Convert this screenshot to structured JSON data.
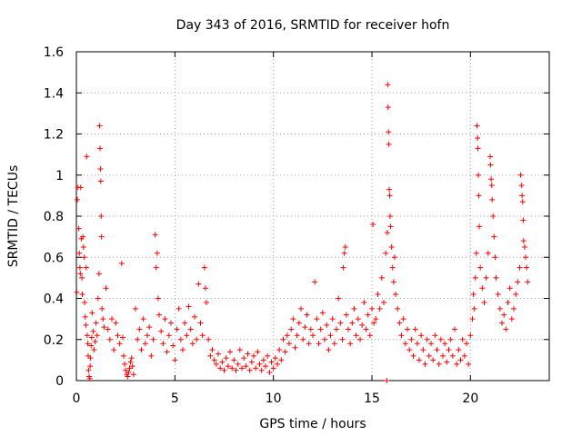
{
  "chart_data": {
    "type": "scatter",
    "title": "Day 343 of 2016, SRMTID for receiver hofn",
    "xlabel": "GPS time / hours",
    "ylabel": "SRMTID / TECUs",
    "xlim": [
      0,
      24
    ],
    "ylim": [
      0,
      1.6
    ],
    "xticks": [
      0,
      5,
      10,
      15,
      20
    ],
    "xtick_labels": [
      "0",
      "5",
      "10",
      "15",
      "20"
    ],
    "yticks": [
      0,
      0.2,
      0.4,
      0.6,
      0.8,
      1.0,
      1.2,
      1.4,
      1.6
    ],
    "ytick_labels": [
      "0",
      "0.2",
      "0.4",
      "0.6",
      "0.8",
      "1",
      "1.2",
      "1.4",
      "1.6"
    ],
    "grid": true,
    "marker": "+",
    "series_color": "#ff0000",
    "series": [
      {
        "name": "SRMTID",
        "points": [
          [
            0.02,
            0.43
          ],
          [
            0.05,
            0.88
          ],
          [
            0.08,
            0.94
          ],
          [
            0.12,
            0.74
          ],
          [
            0.15,
            0.62
          ],
          [
            0.18,
            0.55
          ],
          [
            0.2,
            0.52
          ],
          [
            0.22,
            0.94
          ],
          [
            0.25,
            0.69
          ],
          [
            0.28,
            0.5
          ],
          [
            0.3,
            0.42
          ],
          [
            0.33,
            0.7
          ],
          [
            0.36,
            0.65
          ],
          [
            0.4,
            0.6
          ],
          [
            0.42,
            0.38
          ],
          [
            0.45,
            0.31
          ],
          [
            0.48,
            0.27
          ],
          [
            0.5,
            0.55
          ],
          [
            0.52,
            1.09
          ],
          [
            0.55,
            0.22
          ],
          [
            0.58,
            0.18
          ],
          [
            0.6,
            0.12
          ],
          [
            0.62,
            0.05
          ],
          [
            0.65,
            0.02
          ],
          [
            0.68,
            0.01
          ],
          [
            0.7,
            0.07
          ],
          [
            0.72,
            0.11
          ],
          [
            0.75,
            0.17
          ],
          [
            0.78,
            0.21
          ],
          [
            0.8,
            0.33
          ],
          [
            0.85,
            0.24
          ],
          [
            0.9,
            0.15
          ],
          [
            0.95,
            0.19
          ],
          [
            1.0,
            0.28
          ],
          [
            1.05,
            0.22
          ],
          [
            1.1,
            0.4
          ],
          [
            1.15,
            0.52
          ],
          [
            1.18,
            1.24
          ],
          [
            1.2,
            1.13
          ],
          [
            1.22,
            1.03
          ],
          [
            1.24,
            0.97
          ],
          [
            1.26,
            0.8
          ],
          [
            1.28,
            0.7
          ],
          [
            1.3,
            0.35
          ],
          [
            1.35,
            0.3
          ],
          [
            1.4,
            0.26
          ],
          [
            1.5,
            0.45
          ],
          [
            1.6,
            0.25
          ],
          [
            1.7,
            0.2
          ],
          [
            1.8,
            0.3
          ],
          [
            1.9,
            0.15
          ],
          [
            2.0,
            0.28
          ],
          [
            2.1,
            0.22
          ],
          [
            2.2,
            0.18
          ],
          [
            2.3,
            0.57
          ],
          [
            2.35,
            0.21
          ],
          [
            2.4,
            0.12
          ],
          [
            2.45,
            0.08
          ],
          [
            2.5,
            0.05
          ],
          [
            2.55,
            0.03
          ],
          [
            2.6,
            0.02
          ],
          [
            2.65,
            0.04
          ],
          [
            2.7,
            0.06
          ],
          [
            2.75,
            0.09
          ],
          [
            2.8,
            0.11
          ],
          [
            2.85,
            0.07
          ],
          [
            2.9,
            0.03
          ],
          [
            3.0,
            0.35
          ],
          [
            3.1,
            0.2
          ],
          [
            3.2,
            0.25
          ],
          [
            3.3,
            0.15
          ],
          [
            3.4,
            0.3
          ],
          [
            3.5,
            0.18
          ],
          [
            3.6,
            0.22
          ],
          [
            3.7,
            0.26
          ],
          [
            3.8,
            0.12
          ],
          [
            3.9,
            0.2
          ],
          [
            4.0,
            0.71
          ],
          [
            4.05,
            0.55
          ],
          [
            4.1,
            0.62
          ],
          [
            4.15,
            0.4
          ],
          [
            4.2,
            0.32
          ],
          [
            4.3,
            0.24
          ],
          [
            4.4,
            0.18
          ],
          [
            4.5,
            0.3
          ],
          [
            4.6,
            0.14
          ],
          [
            4.7,
            0.22
          ],
          [
            4.8,
            0.28
          ],
          [
            4.9,
            0.17
          ],
          [
            5.0,
            0.1
          ],
          [
            5.1,
            0.25
          ],
          [
            5.2,
            0.35
          ],
          [
            5.3,
            0.2
          ],
          [
            5.4,
            0.15
          ],
          [
            5.5,
            0.28
          ],
          [
            5.6,
            0.22
          ],
          [
            5.7,
            0.36
          ],
          [
            5.8,
            0.25
          ],
          [
            5.9,
            0.18
          ],
          [
            6.0,
            0.31
          ],
          [
            6.1,
            0.2
          ],
          [
            6.2,
            0.47
          ],
          [
            6.3,
            0.28
          ],
          [
            6.4,
            0.22
          ],
          [
            6.5,
            0.55
          ],
          [
            6.55,
            0.45
          ],
          [
            6.6,
            0.38
          ],
          [
            6.7,
            0.2
          ],
          [
            6.8,
            0.12
          ],
          [
            6.9,
            0.15
          ],
          [
            7.0,
            0.1
          ],
          [
            7.1,
            0.08
          ],
          [
            7.2,
            0.13
          ],
          [
            7.3,
            0.06
          ],
          [
            7.4,
            0.09
          ],
          [
            7.5,
            0.05
          ],
          [
            7.6,
            0.11
          ],
          [
            7.7,
            0.07
          ],
          [
            7.8,
            0.14
          ],
          [
            7.9,
            0.06
          ],
          [
            8.0,
            0.1
          ],
          [
            8.1,
            0.05
          ],
          [
            8.2,
            0.08
          ],
          [
            8.3,
            0.15
          ],
          [
            8.4,
            0.06
          ],
          [
            8.5,
            0.11
          ],
          [
            8.6,
            0.07
          ],
          [
            8.7,
            0.13
          ],
          [
            8.8,
            0.05
          ],
          [
            8.9,
            0.09
          ],
          [
            9.0,
            0.12
          ],
          [
            9.1,
            0.06
          ],
          [
            9.2,
            0.14
          ],
          [
            9.3,
            0.08
          ],
          [
            9.4,
            0.05
          ],
          [
            9.5,
            0.1
          ],
          [
            9.6,
            0.07
          ],
          [
            9.7,
            0.12
          ],
          [
            9.8,
            0.04
          ],
          [
            9.9,
            0.09
          ],
          [
            10.0,
            0.06
          ],
          [
            10.1,
            0.11
          ],
          [
            10.2,
            0.08
          ],
          [
            10.3,
            0.15
          ],
          [
            10.4,
            0.1
          ],
          [
            10.5,
            0.2
          ],
          [
            10.6,
            0.14
          ],
          [
            10.7,
            0.22
          ],
          [
            10.8,
            0.18
          ],
          [
            10.9,
            0.25
          ],
          [
            11.0,
            0.3
          ],
          [
            11.1,
            0.16
          ],
          [
            11.2,
            0.22
          ],
          [
            11.3,
            0.28
          ],
          [
            11.4,
            0.35
          ],
          [
            11.5,
            0.2
          ],
          [
            11.6,
            0.26
          ],
          [
            11.7,
            0.32
          ],
          [
            11.8,
            0.18
          ],
          [
            11.9,
            0.25
          ],
          [
            12.0,
            0.22
          ],
          [
            12.1,
            0.48
          ],
          [
            12.2,
            0.3
          ],
          [
            12.3,
            0.18
          ],
          [
            12.4,
            0.25
          ],
          [
            12.5,
            0.33
          ],
          [
            12.6,
            0.2
          ],
          [
            12.7,
            0.27
          ],
          [
            12.8,
            0.15
          ],
          [
            12.9,
            0.22
          ],
          [
            13.0,
            0.3
          ],
          [
            13.1,
            0.18
          ],
          [
            13.2,
            0.25
          ],
          [
            13.3,
            0.4
          ],
          [
            13.4,
            0.28
          ],
          [
            13.5,
            0.2
          ],
          [
            13.55,
            0.55
          ],
          [
            13.6,
            0.62
          ],
          [
            13.65,
            0.65
          ],
          [
            13.7,
            0.32
          ],
          [
            13.8,
            0.25
          ],
          [
            13.9,
            0.18
          ],
          [
            14.0,
            0.28
          ],
          [
            14.1,
            0.35
          ],
          [
            14.2,
            0.22
          ],
          [
            14.3,
            0.3
          ],
          [
            14.4,
            0.2
          ],
          [
            14.5,
            0.27
          ],
          [
            14.6,
            0.38
          ],
          [
            14.7,
            0.25
          ],
          [
            14.8,
            0.32
          ],
          [
            14.9,
            0.22
          ],
          [
            15.0,
            0.35
          ],
          [
            15.05,
            0.76
          ],
          [
            15.1,
            0.28
          ],
          [
            15.2,
            0.3
          ],
          [
            15.3,
            0.42
          ],
          [
            15.4,
            0.35
          ],
          [
            15.5,
            0.5
          ],
          [
            15.6,
            0.38
          ],
          [
            15.7,
            0.62
          ],
          [
            15.75,
            0.0
          ],
          [
            15.78,
            0.72
          ],
          [
            15.8,
            1.44
          ],
          [
            15.82,
            1.33
          ],
          [
            15.84,
            1.21
          ],
          [
            15.86,
            1.15
          ],
          [
            15.88,
            0.93
          ],
          [
            15.9,
            0.9
          ],
          [
            15.92,
            0.8
          ],
          [
            15.95,
            0.75
          ],
          [
            16.0,
            0.65
          ],
          [
            16.05,
            0.55
          ],
          [
            16.1,
            0.48
          ],
          [
            16.15,
            0.6
          ],
          [
            16.2,
            0.42
          ],
          [
            16.3,
            0.35
          ],
          [
            16.4,
            0.28
          ],
          [
            16.5,
            0.22
          ],
          [
            16.6,
            0.3
          ],
          [
            16.7,
            0.18
          ],
          [
            16.8,
            0.25
          ],
          [
            16.9,
            0.15
          ],
          [
            17.0,
            0.2
          ],
          [
            17.1,
            0.12
          ],
          [
            17.2,
            0.25
          ],
          [
            17.3,
            0.18
          ],
          [
            17.4,
            0.1
          ],
          [
            17.5,
            0.22
          ],
          [
            17.6,
            0.15
          ],
          [
            17.7,
            0.08
          ],
          [
            17.8,
            0.2
          ],
          [
            17.9,
            0.12
          ],
          [
            18.0,
            0.18
          ],
          [
            18.1,
            0.1
          ],
          [
            18.2,
            0.22
          ],
          [
            18.3,
            0.15
          ],
          [
            18.4,
            0.08
          ],
          [
            18.5,
            0.2
          ],
          [
            18.6,
            0.12
          ],
          [
            18.7,
            0.18
          ],
          [
            18.8,
            0.09
          ],
          [
            18.9,
            0.15
          ],
          [
            19.0,
            0.2
          ],
          [
            19.1,
            0.12
          ],
          [
            19.2,
            0.25
          ],
          [
            19.3,
            0.08
          ],
          [
            19.4,
            0.15
          ],
          [
            19.5,
            0.1
          ],
          [
            19.6,
            0.2
          ],
          [
            19.7,
            0.12
          ],
          [
            19.8,
            0.18
          ],
          [
            19.9,
            0.08
          ],
          [
            20.0,
            0.22
          ],
          [
            20.1,
            0.3
          ],
          [
            20.15,
            0.42
          ],
          [
            20.2,
            0.35
          ],
          [
            20.25,
            0.5
          ],
          [
            20.3,
            0.62
          ],
          [
            20.33,
            1.24
          ],
          [
            20.36,
            1.18
          ],
          [
            20.38,
            1.13
          ],
          [
            20.4,
            1.0
          ],
          [
            20.42,
            0.9
          ],
          [
            20.45,
            0.75
          ],
          [
            20.5,
            0.55
          ],
          [
            20.6,
            0.45
          ],
          [
            20.7,
            0.38
          ],
          [
            20.8,
            0.5
          ],
          [
            20.9,
            0.62
          ],
          [
            21.0,
            1.09
          ],
          [
            21.02,
            1.05
          ],
          [
            21.05,
            0.98
          ],
          [
            21.08,
            0.95
          ],
          [
            21.1,
            0.88
          ],
          [
            21.15,
            0.8
          ],
          [
            21.2,
            0.7
          ],
          [
            21.25,
            0.6
          ],
          [
            21.3,
            0.5
          ],
          [
            21.4,
            0.42
          ],
          [
            21.5,
            0.35
          ],
          [
            21.6,
            0.28
          ],
          [
            21.7,
            0.32
          ],
          [
            21.8,
            0.25
          ],
          [
            21.9,
            0.38
          ],
          [
            22.0,
            0.45
          ],
          [
            22.1,
            0.3
          ],
          [
            22.2,
            0.35
          ],
          [
            22.3,
            0.42
          ],
          [
            22.4,
            0.48
          ],
          [
            22.5,
            0.55
          ],
          [
            22.55,
            1.0
          ],
          [
            22.6,
            0.95
          ],
          [
            22.62,
            0.9
          ],
          [
            22.65,
            0.87
          ],
          [
            22.68,
            0.78
          ],
          [
            22.7,
            0.68
          ],
          [
            22.75,
            0.65
          ],
          [
            22.8,
            0.6
          ],
          [
            22.85,
            0.55
          ],
          [
            22.9,
            0.48
          ]
        ]
      }
    ]
  }
}
